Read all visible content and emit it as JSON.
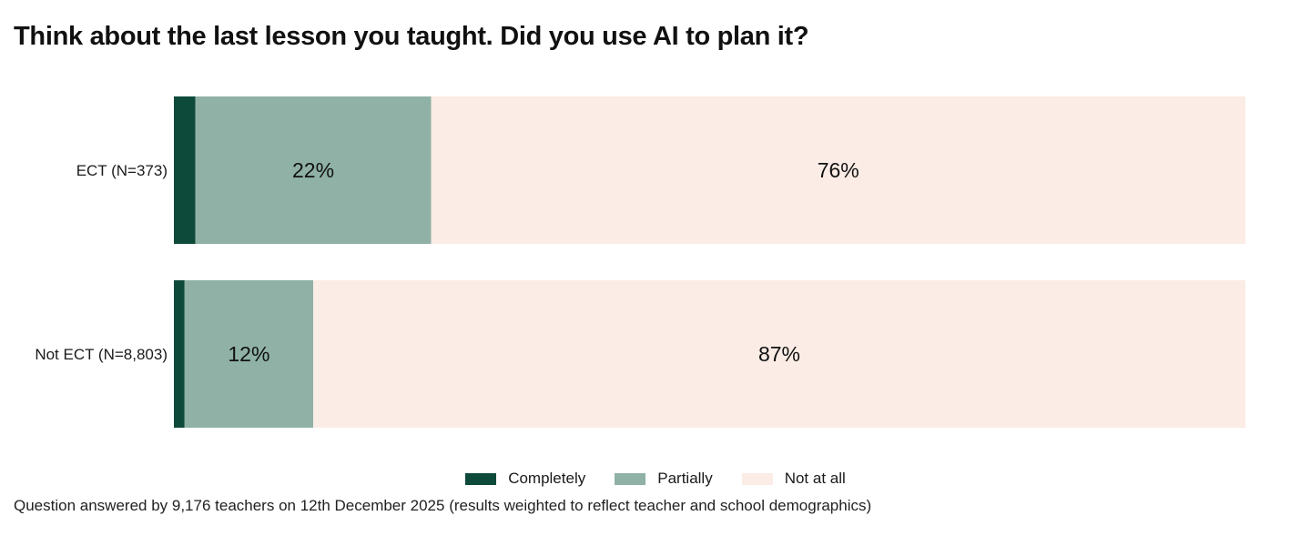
{
  "title": "Think about the last lesson you taught. Did you use AI to plan it?",
  "footnote": "Question answered by 9,176 teachers on 12th December 2025 (results weighted to reflect teacher and school demographics)",
  "colors": {
    "completely": "#0e4a3a",
    "partially": "#8fb1a6",
    "not_at_all": "#fbece5"
  },
  "legend": [
    {
      "key": "completely",
      "label": "Completely"
    },
    {
      "key": "partially",
      "label": "Partially"
    },
    {
      "key": "not_at_all",
      "label": "Not at all"
    }
  ],
  "chart_data": {
    "type": "bar",
    "orientation": "horizontal",
    "stacked": true,
    "normalized": true,
    "categories": [
      "ECT (N=373)",
      "Not ECT (N=8,803)"
    ],
    "series": [
      {
        "name": "Completely",
        "key": "completely",
        "values": [
          2,
          1
        ],
        "labels": [
          "",
          ""
        ]
      },
      {
        "name": "Partially",
        "key": "partially",
        "values": [
          22,
          12
        ],
        "labels": [
          "22%",
          "12%"
        ]
      },
      {
        "name": "Not at all",
        "key": "not_at_all",
        "values": [
          76,
          87
        ],
        "labels": [
          "76%",
          "87%"
        ]
      }
    ],
    "xlim": [
      0,
      100
    ],
    "grid": false,
    "legend_position": "bottom-center"
  }
}
